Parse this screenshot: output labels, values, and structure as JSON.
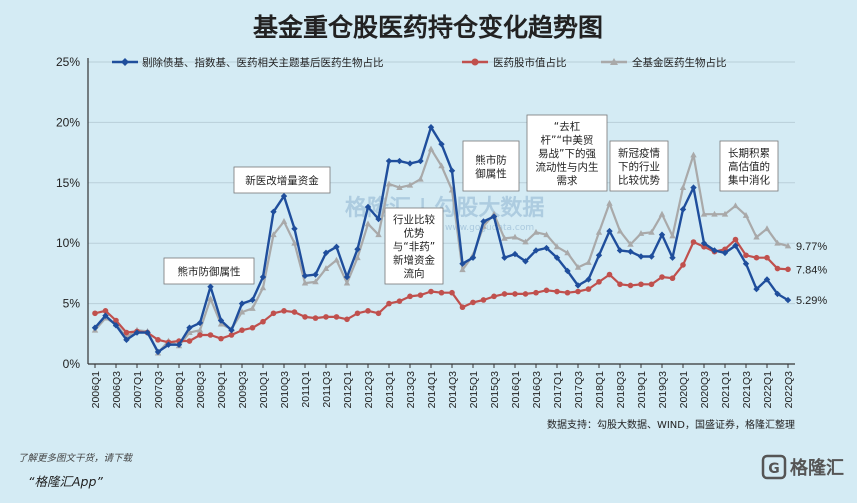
{
  "chart_data": {
    "type": "line",
    "title": "基金重仓股医药持仓变化趋势图",
    "ylim": [
      0,
      25
    ],
    "yticks": [
      "0%",
      "5%",
      "10%",
      "15%",
      "20%",
      "25%"
    ],
    "categories": [
      "2006Q1",
      "2006Q2",
      "2006Q3",
      "2006Q4",
      "2007Q1",
      "2007Q2",
      "2007Q3",
      "2007Q4",
      "2008Q1",
      "2008Q2",
      "2008Q3",
      "2008Q4",
      "2009Q1",
      "2009Q2",
      "2009Q3",
      "2009Q4",
      "2010Q1",
      "2010Q2",
      "2010Q3",
      "2010Q4",
      "2011Q1",
      "2011Q2",
      "2011Q3",
      "2011Q4",
      "2012Q1",
      "2012Q2",
      "2012Q3",
      "2012Q4",
      "2013Q1",
      "2013Q2",
      "2013Q3",
      "2013Q4",
      "2014Q1",
      "2014Q2",
      "2014Q3",
      "2014Q4",
      "2015Q1",
      "2015Q2",
      "2015Q3",
      "2015Q4",
      "2016Q1",
      "2016Q2",
      "2016Q3",
      "2016Q4",
      "2017Q1",
      "2017Q2",
      "2017Q3",
      "2017Q4",
      "2018Q1",
      "2018Q2",
      "2018Q3",
      "2018Q4",
      "2019Q1",
      "2019Q2",
      "2019Q3",
      "2019Q4",
      "2020Q1",
      "2020Q2",
      "2020Q3",
      "2020Q4",
      "2021Q1",
      "2021Q2",
      "2021Q3",
      "2021Q4",
      "2022Q1",
      "2022Q2",
      "2022Q3"
    ],
    "xtick_labels": [
      "2006Q1",
      "2006Q3",
      "2007Q1",
      "2007Q3",
      "2008Q1",
      "2008Q3",
      "2009Q1",
      "2009Q3",
      "2010Q1",
      "2010Q3",
      "2011Q1",
      "2011Q3",
      "2012Q1",
      "2012Q3",
      "2013Q1",
      "2013Q3",
      "2014Q1",
      "2014Q3",
      "2015Q1",
      "2015Q3",
      "2016Q1",
      "2016Q3",
      "2017Q1",
      "2017Q3",
      "2018Q1",
      "2018Q3",
      "2019Q1",
      "2019Q3",
      "2020Q1",
      "2020Q3",
      "2021Q1",
      "2021Q3",
      "2022Q1",
      "2022Q3"
    ],
    "series": [
      {
        "name": "剔除债基、指数基、医药相关主题基后医药生物占比",
        "color": "#1f4e9c",
        "marker": "diamond",
        "values": [
          3.0,
          4.0,
          3.2,
          2.0,
          2.6,
          2.6,
          1.0,
          1.6,
          1.6,
          3.0,
          3.4,
          6.4,
          3.6,
          2.8,
          5.0,
          5.3,
          7.2,
          12.6,
          13.9,
          11.2,
          7.3,
          7.4,
          9.2,
          9.7,
          7.2,
          9.5,
          13.0,
          12.0,
          16.8,
          16.8,
          16.6,
          16.8,
          19.6,
          18.2,
          16.0,
          8.3,
          8.8,
          11.8,
          12.2,
          8.8,
          9.1,
          8.5,
          9.4,
          9.6,
          8.8,
          7.7,
          6.5,
          7.0,
          9.0,
          11.0,
          9.4,
          9.3,
          8.9,
          8.9,
          10.7,
          8.8,
          12.8,
          14.6,
          10.0,
          9.4,
          9.2,
          9.8,
          8.3,
          6.2,
          7.0,
          5.8,
          5.29
        ]
      },
      {
        "name": "医药股市值占比",
        "color": "#c0504d",
        "marker": "circle",
        "values": [
          4.2,
          4.4,
          3.6,
          2.6,
          2.7,
          2.6,
          2.0,
          1.8,
          1.9,
          1.9,
          2.4,
          2.4,
          2.1,
          2.4,
          2.8,
          3.0,
          3.5,
          4.2,
          4.4,
          4.3,
          3.9,
          3.8,
          3.9,
          3.9,
          3.7,
          4.2,
          4.4,
          4.2,
          5.0,
          5.2,
          5.6,
          5.7,
          6.0,
          5.9,
          5.9,
          4.7,
          5.1,
          5.3,
          5.6,
          5.8,
          5.8,
          5.8,
          5.9,
          6.1,
          6.0,
          5.9,
          6.0,
          6.2,
          6.8,
          7.4,
          6.6,
          6.5,
          6.6,
          6.6,
          7.2,
          7.1,
          8.2,
          10.1,
          9.7,
          9.3,
          9.5,
          10.3,
          9.0,
          8.8,
          8.8,
          7.9,
          7.84
        ]
      },
      {
        "name": "全基金医药生物占比",
        "color": "#a9a9a9",
        "marker": "triangle",
        "values": [
          2.8,
          3.8,
          3.3,
          2.2,
          2.8,
          2.7,
          0.9,
          1.9,
          1.5,
          2.6,
          2.8,
          5.4,
          3.3,
          2.9,
          4.3,
          4.6,
          6.3,
          10.7,
          11.8,
          10.0,
          6.7,
          6.8,
          7.9,
          8.6,
          6.7,
          8.8,
          11.6,
          10.7,
          14.9,
          14.6,
          14.8,
          15.3,
          17.8,
          16.4,
          14.4,
          7.8,
          9.0,
          11.4,
          12.4,
          10.4,
          10.5,
          10.1,
          10.9,
          10.7,
          9.7,
          9.2,
          8.0,
          8.4,
          10.9,
          13.3,
          11.0,
          9.9,
          10.8,
          10.9,
          12.4,
          10.6,
          14.6,
          17.3,
          12.4,
          12.4,
          12.4,
          13.1,
          12.3,
          10.5,
          11.2,
          10.0,
          9.77
        ]
      }
    ],
    "end_labels": [
      "9.77%",
      "7.84%",
      "5.29%"
    ],
    "annotations": [
      {
        "lines": [
          "熊市防御属性"
        ],
        "at": "2008Q3"
      },
      {
        "lines": [
          "新医改增量资金"
        ],
        "at": "2010Q3"
      },
      {
        "lines": [
          "行业比较",
          "优势",
          "与“非药”",
          "新增资金",
          "流向"
        ],
        "at": "2013Q4"
      },
      {
        "lines": [
          "熊市防",
          "御属性"
        ],
        "at": "2015Q3"
      },
      {
        "lines": [
          "“去杠",
          "杆”“中美贸",
          "易战”下的强",
          "流动性与内生",
          "需求"
        ],
        "at": "2018Q3"
      },
      {
        "lines": [
          "新冠疫情",
          "下的行业",
          "比较优势"
        ],
        "at": "2020Q2"
      },
      {
        "lines": [
          "长期积累",
          "高估值的",
          "集中消化"
        ],
        "at": "2022Q1"
      }
    ],
    "source": "数据支持：勾股大数据、WIND，国盛证券，格隆汇整理",
    "footer_note": "了解更多图文干货，请下载",
    "footer_app": "“格隆汇App”",
    "brand": "格隆汇",
    "watermark": "格隆汇 | 勾股大数据",
    "watermark_url": "www.gogudata.com"
  }
}
